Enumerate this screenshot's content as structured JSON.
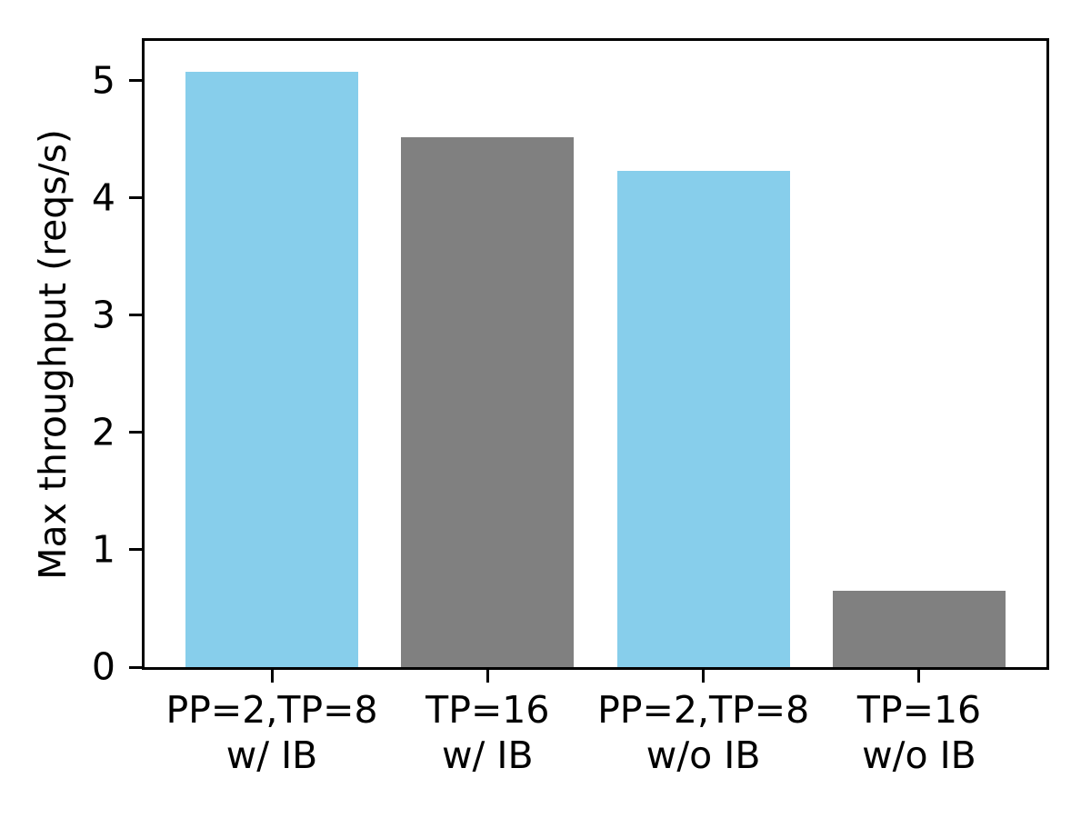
{
  "figure": {
    "background_color": "#ffffff",
    "axis_color": "#000000",
    "text_color": "#000000"
  },
  "chart_data": {
    "type": "bar",
    "title": "",
    "xlabel": "",
    "ylabel": "Max throughput (reqs/s)",
    "categories": [
      [
        "PP=2,TP=8",
        "w/ IB"
      ],
      [
        "TP=16",
        "w/ IB"
      ],
      [
        "PP=2,TP=8",
        "w/o IB"
      ],
      [
        "TP=16",
        "w/o IB"
      ]
    ],
    "values": [
      5.08,
      4.52,
      4.23,
      0.65
    ],
    "bar_colors": [
      "#87ceeb",
      "#808080",
      "#87ceeb",
      "#808080"
    ],
    "yticks": [
      0,
      1,
      2,
      3,
      4,
      5
    ],
    "ylim": [
      0,
      5.34
    ],
    "xlim": [
      -0.59,
      3.59
    ],
    "bar_width_units": 0.8,
    "grid": false,
    "legend_position": "none"
  }
}
